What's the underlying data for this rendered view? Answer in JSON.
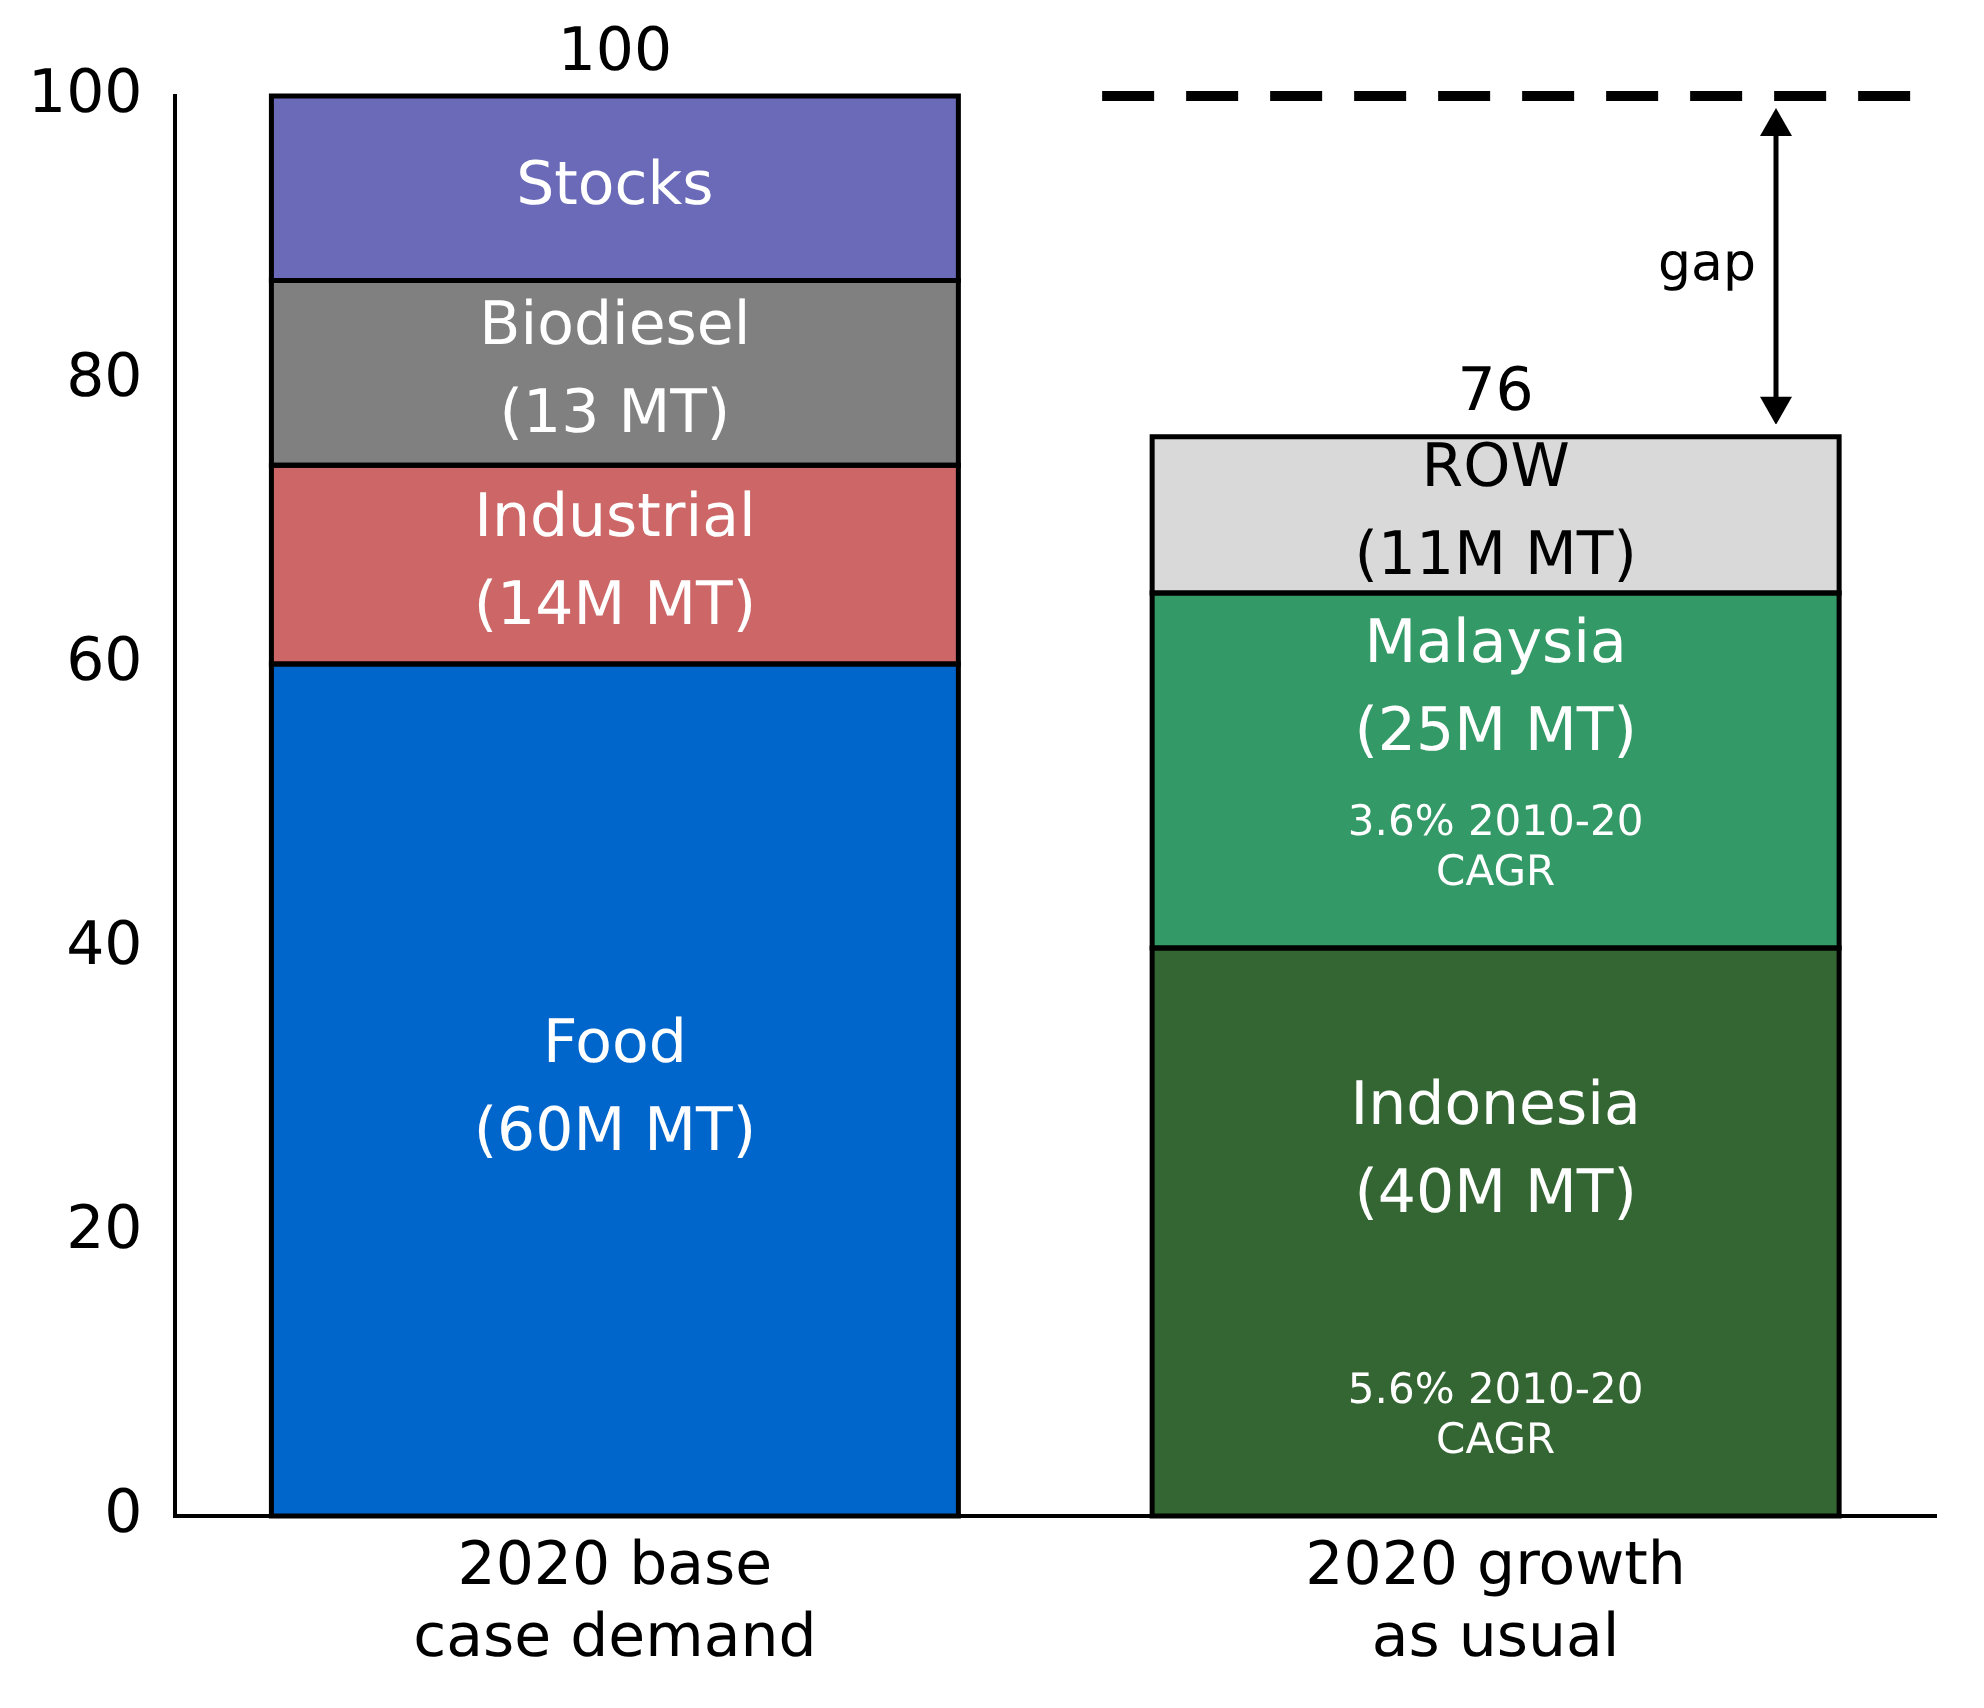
{
  "chart_data": {
    "type": "bar",
    "stacked": true,
    "categories": [
      "2020 base case demand",
      "2020 growth as usual"
    ],
    "series": [
      {
        "name": "Food",
        "color": "#0066cc",
        "values": [
          60,
          null
        ],
        "value_labels": [
          "(60M MT)",
          null
        ]
      },
      {
        "name": "Industrial",
        "color": "#cd6666",
        "values": [
          14,
          null
        ],
        "value_labels": [
          "(14M MT)",
          null
        ]
      },
      {
        "name": "Biodiesel",
        "color": "#808080",
        "values": [
          13,
          null
        ],
        "value_labels": [
          "(13 MT)",
          null
        ]
      },
      {
        "name": "Stocks",
        "color": "#6a6ab8",
        "values": [
          13,
          null
        ],
        "value_labels": [
          null,
          null
        ]
      },
      {
        "name": "Indonesia",
        "color": "#336633",
        "values": [
          null,
          40
        ],
        "value_labels": [
          null,
          "(40M MT)"
        ]
      },
      {
        "name": "Malaysia",
        "color": "#339966",
        "values": [
          null,
          25
        ],
        "value_labels": [
          null,
          "(25M MT)"
        ]
      },
      {
        "name": "ROW",
        "color": "#d9d9d9",
        "values": [
          null,
          11
        ],
        "value_labels": [
          null,
          "(11M MT)"
        ]
      }
    ],
    "totals": [
      "100",
      "76"
    ],
    "ylim": [
      0,
      100
    ],
    "yticks": [
      0,
      20,
      40,
      60,
      80,
      100
    ],
    "grid": false,
    "legend": false,
    "ref_lines": [
      {
        "axis": "y",
        "value": 100,
        "line_style": "dashed",
        "color": "#000000"
      }
    ],
    "annotations": [
      "5.6% 2010-20 CAGR",
      "3.6% 2010-20 CAGR",
      "gap"
    ]
  }
}
